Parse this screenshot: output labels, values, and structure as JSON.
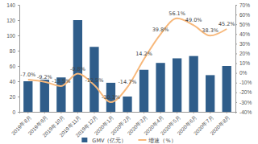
{
  "chart_data": {
    "type": "bar",
    "categories": [
      "2019年8月",
      "2019年9月",
      "2019年10月",
      "2019年11月",
      "2019年12月",
      "2020年1月",
      "2020年2月",
      "2020年3月",
      "2020年4月",
      "2020年5月",
      "2020年6月",
      "2020年7月",
      "2020年8月"
    ],
    "series": [
      {
        "name": "GMV（亿元）",
        "type": "bar",
        "color": "#2f5d8a",
        "values": [
          40,
          42,
          45,
          120,
          85,
          38,
          20,
          55,
          64,
          70,
          73,
          48,
          60
        ]
      },
      {
        "name": "增速（%）",
        "type": "line",
        "axis": "y2",
        "color": "#f7b87b",
        "data_labels": true,
        "values": [
          -7.0,
          -9.2,
          -13.5,
          -0.8,
          -12.5,
          -30.1,
          -14.7,
          14.2,
          39.8,
          56.1,
          49.0,
          38.3,
          45.2
        ],
        "value_labels": [
          "-7.0%",
          "-9.2%",
          "-13.5%",
          "-0.8%",
          "-12.5%",
          "-30.1%",
          "-14.7%",
          "14.2%",
          "39.8%",
          "56.1%",
          "49.0%",
          "38.3%",
          "45.2%"
        ]
      }
    ],
    "ylim": [
      0,
      140
    ],
    "yticks": [
      0,
      20,
      40,
      60,
      80,
      100,
      120,
      140
    ],
    "y2lim": [
      -40,
      70
    ],
    "y2ticks": [
      {
        "value": -40,
        "label": "-40%"
      },
      {
        "value": -30,
        "label": "-30%"
      },
      {
        "value": -20,
        "label": "-20%"
      },
      {
        "value": -10,
        "label": "-10%"
      },
      {
        "value": 0,
        "label": "0%"
      },
      {
        "value": 10,
        "label": "10%"
      },
      {
        "value": 20,
        "label": "20%"
      },
      {
        "value": 30,
        "label": "30%"
      },
      {
        "value": 40,
        "label": "40%"
      },
      {
        "value": 50,
        "label": "50%"
      },
      {
        "value": 60,
        "label": "60%"
      },
      {
        "value": 70,
        "label": "70%"
      }
    ],
    "grid": false,
    "legend": "bottom"
  }
}
